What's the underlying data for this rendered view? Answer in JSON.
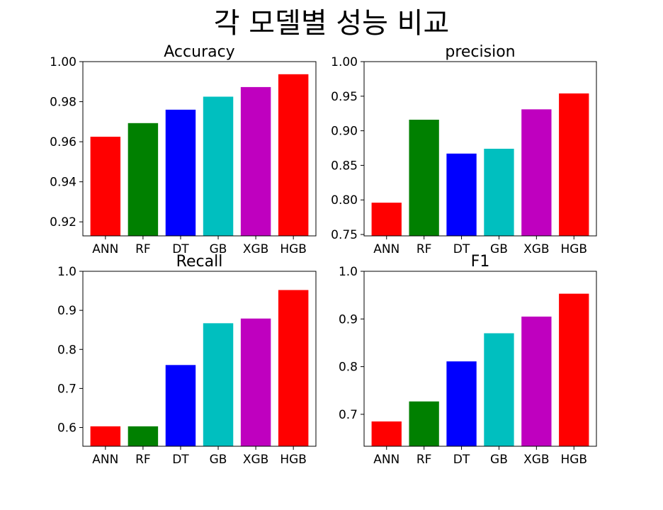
{
  "figure": {
    "title": "각 모델별 성능 비교"
  },
  "chart_data": [
    {
      "type": "bar",
      "title": "Accuracy",
      "categories": [
        "ANN",
        "RF",
        "DT",
        "GB",
        "XGB",
        "HGB"
      ],
      "values": [
        0.9625,
        0.9693,
        0.976,
        0.9825,
        0.9873,
        0.9937
      ],
      "colors": [
        "#ff0000",
        "#008000",
        "#0000ff",
        "#00bfbf",
        "#bf00bf",
        "#ff0000"
      ],
      "ylim": [
        0.913,
        1.0
      ],
      "yticks": [
        0.92,
        0.94,
        0.96,
        0.98,
        1.0
      ],
      "ytick_labels": [
        "0.92",
        "0.94",
        "0.96",
        "0.98",
        "1.00"
      ],
      "xlabel": "",
      "ylabel": ""
    },
    {
      "type": "bar",
      "title": "precision",
      "categories": [
        "ANN",
        "RF",
        "DT",
        "GB",
        "XGB",
        "HGB"
      ],
      "values": [
        0.796,
        0.916,
        0.867,
        0.874,
        0.931,
        0.954
      ],
      "colors": [
        "#ff0000",
        "#008000",
        "#0000ff",
        "#00bfbf",
        "#bf00bf",
        "#ff0000"
      ],
      "ylim": [
        0.748,
        1.0
      ],
      "yticks": [
        0.75,
        0.8,
        0.85,
        0.9,
        0.95,
        1.0
      ],
      "ytick_labels": [
        "0.75",
        "0.80",
        "0.85",
        "0.90",
        "0.95",
        "1.00"
      ],
      "xlabel": "",
      "ylabel": ""
    },
    {
      "type": "bar",
      "title": "Recall",
      "categories": [
        "ANN",
        "RF",
        "DT",
        "GB",
        "XGB",
        "HGB"
      ],
      "values": [
        0.603,
        0.603,
        0.76,
        0.867,
        0.879,
        0.952
      ],
      "colors": [
        "#ff0000",
        "#008000",
        "#0000ff",
        "#00bfbf",
        "#bf00bf",
        "#ff0000"
      ],
      "ylim": [
        0.552,
        1.0
      ],
      "yticks": [
        0.6,
        0.7,
        0.8,
        0.9,
        1.0
      ],
      "ytick_labels": [
        "0.6",
        "0.7",
        "0.8",
        "0.9",
        "1.0"
      ],
      "xlabel": "",
      "ylabel": ""
    },
    {
      "type": "bar",
      "title": "F1",
      "categories": [
        "ANN",
        "RF",
        "DT",
        "GB",
        "XGB",
        "HGB"
      ],
      "values": [
        0.685,
        0.727,
        0.811,
        0.87,
        0.905,
        0.953
      ],
      "colors": [
        "#ff0000",
        "#008000",
        "#0000ff",
        "#00bfbf",
        "#bf00bf",
        "#ff0000"
      ],
      "ylim": [
        0.633,
        1.0
      ],
      "yticks": [
        0.7,
        0.8,
        0.9,
        1.0
      ],
      "ytick_labels": [
        "0.7",
        "0.8",
        "0.9",
        "1.0"
      ],
      "xlabel": "",
      "ylabel": ""
    }
  ]
}
